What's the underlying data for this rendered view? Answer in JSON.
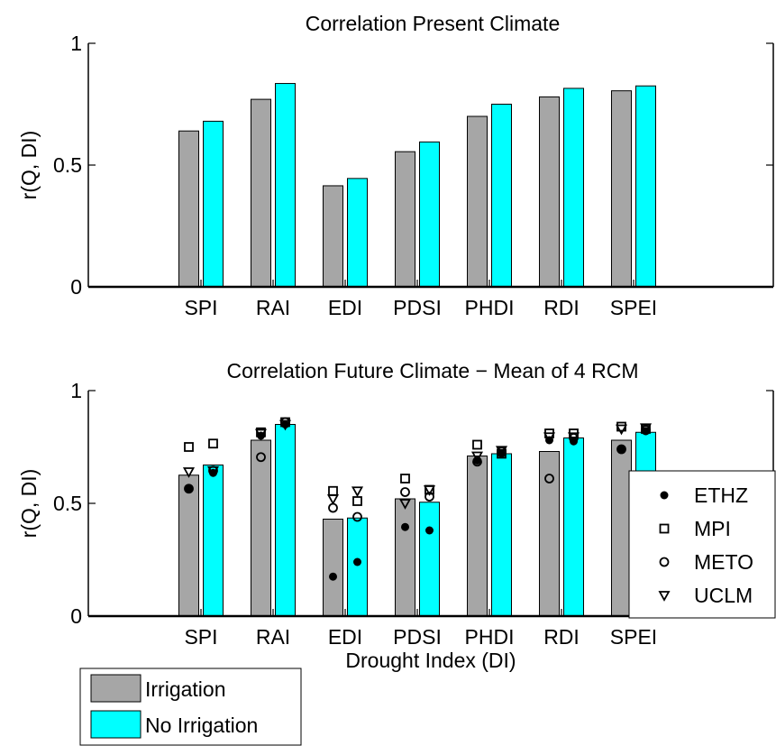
{
  "chart_data": [
    {
      "type": "bar",
      "title": "Correlation Present Climate",
      "xlabel": "",
      "ylabel": "r(Q, DI)",
      "ylim": [
        0,
        1
      ],
      "yticks": [
        "0",
        "0.5",
        "1"
      ],
      "categories": [
        "SPI",
        "RAI",
        "EDI",
        "PDSI",
        "PHDI",
        "RDI",
        "SPEI"
      ],
      "series": [
        {
          "name": "Irrigation",
          "color": "#a6a6a6",
          "values": [
            0.64,
            0.77,
            0.415,
            0.555,
            0.7,
            0.78,
            0.805
          ]
        },
        {
          "name": "No Irrigation",
          "color": "#00ffff",
          "values": [
            0.68,
            0.835,
            0.445,
            0.595,
            0.75,
            0.815,
            0.825
          ]
        }
      ]
    },
    {
      "type": "bar",
      "title": "Correlation Future Climate − Mean of 4 RCM",
      "xlabel": "Drought Index (DI)",
      "ylabel": "r(Q, DI)",
      "ylim": [
        0,
        1
      ],
      "yticks": [
        "0",
        "0.5",
        "1"
      ],
      "categories": [
        "SPI",
        "RAI",
        "EDI",
        "PDSI",
        "PHDI",
        "RDI",
        "SPEI"
      ],
      "series": [
        {
          "name": "Irrigation",
          "color": "#a6a6a6",
          "values": [
            0.625,
            0.78,
            0.43,
            0.52,
            0.71,
            0.73,
            0.78
          ]
        },
        {
          "name": "No Irrigation",
          "color": "#00ffff",
          "values": [
            0.67,
            0.85,
            0.435,
            0.505,
            0.72,
            0.79,
            0.815
          ]
        }
      ],
      "rcm_legend": [
        {
          "name": "ETHZ",
          "marker": "dot"
        },
        {
          "name": "MPI",
          "marker": "square"
        },
        {
          "name": "METO",
          "marker": "circle"
        },
        {
          "name": "UCLM",
          "marker": "triangle-down"
        }
      ],
      "rcm_points": {
        "Irrigation": {
          "ETHZ": [
            0.565,
            0.8,
            0.175,
            0.395,
            0.69,
            0.78,
            0.74
          ],
          "MPI": [
            0.75,
            0.815,
            0.555,
            0.61,
            0.76,
            0.81,
            0.84
          ],
          "METO": [
            0.565,
            0.705,
            0.48,
            0.55,
            0.685,
            0.61,
            0.74
          ],
          "UCLM": [
            0.64,
            0.81,
            0.52,
            0.5,
            0.71,
            0.795,
            0.83
          ]
        },
        "No Irrigation": {
          "ETHZ": [
            0.635,
            0.85,
            0.24,
            0.38,
            0.72,
            0.775,
            0.82
          ],
          "MPI": [
            0.765,
            0.86,
            0.51,
            0.56,
            0.72,
            0.81,
            0.83
          ],
          "METO": [
            0.645,
            0.86,
            0.44,
            0.53,
            0.73,
            0.79,
            0.825
          ],
          "UCLM": [
            0.645,
            0.85,
            0.555,
            0.56,
            0.735,
            0.795,
            0.835
          ]
        }
      }
    }
  ],
  "bar_legend": [
    {
      "name": "Irrigation",
      "color": "#a6a6a6"
    },
    {
      "name": "No Irrigation",
      "color": "#00ffff"
    }
  ]
}
